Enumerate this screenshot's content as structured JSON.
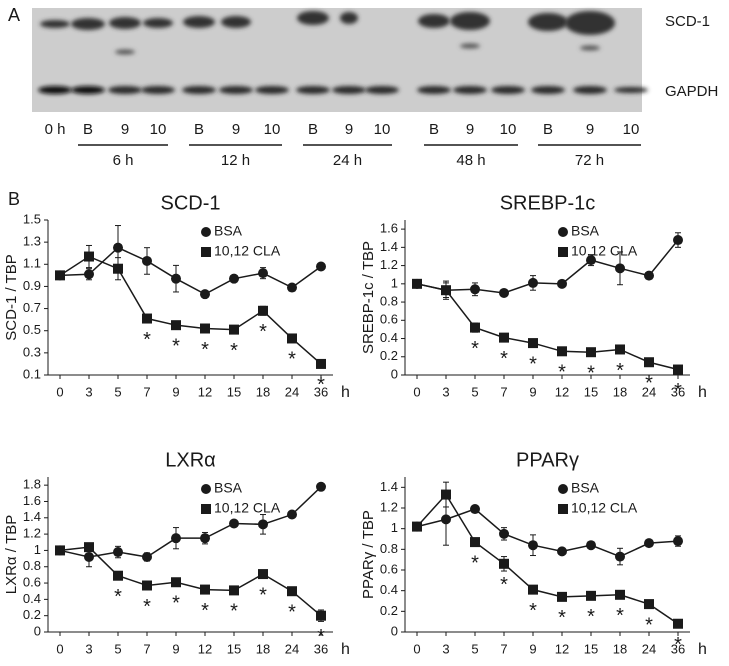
{
  "panels": [
    "A",
    "B"
  ],
  "blot": {
    "band_labels": [
      "SCD-1",
      "GAPDH"
    ],
    "lane_labels": [
      "0 h",
      "B",
      "9",
      "10",
      "B",
      "9",
      "10",
      "B",
      "9",
      "10",
      "B",
      "9",
      "10",
      "B",
      "9",
      "10"
    ],
    "group_labels": [
      "6 h",
      "12 h",
      "24 h",
      "48 h",
      "72 h"
    ]
  },
  "chart_data": [
    {
      "type": "line",
      "title": "SCD-1",
      "y_label": "SCD-1 / TBP",
      "x_label": "h",
      "categories": [
        "0",
        "3",
        "5",
        "7",
        "9",
        "12",
        "15",
        "18",
        "24",
        "36"
      ],
      "ylim": [
        0.1,
        1.5
      ],
      "yticks": [
        0.1,
        0.3,
        0.5,
        0.7,
        0.9,
        1.1,
        1.3,
        1.5
      ],
      "series": [
        {
          "name": "BSA",
          "color": "#1a1a1a",
          "marker": "circle",
          "values": [
            1.0,
            1.01,
            1.25,
            1.13,
            0.97,
            0.83,
            0.97,
            1.02,
            0.89,
            1.08
          ],
          "errors": [
            0,
            0.05,
            0.2,
            0.12,
            0.12,
            0.02,
            0.03,
            0.05,
            0.03,
            0.03
          ]
        },
        {
          "name": "10,12 CLA",
          "color": "#1a1a1a",
          "marker": "square",
          "values": [
            1.0,
            1.17,
            1.06,
            0.61,
            0.55,
            0.52,
            0.51,
            0.68,
            0.43,
            0.2
          ],
          "errors": [
            0,
            0.1,
            0.1,
            0.03,
            0.03,
            0.03,
            0.03,
            0.04,
            0.03,
            0.03
          ],
          "significance": [
            null,
            null,
            null,
            "*",
            "*",
            "*",
            "*",
            "*",
            "*",
            "*"
          ]
        }
      ]
    },
    {
      "type": "line",
      "title": "SREBP-1c",
      "y_label": "SREBP-1c / TBP",
      "x_label": "h",
      "categories": [
        "0",
        "3",
        "5",
        "7",
        "9",
        "12",
        "15",
        "18",
        "24",
        "36"
      ],
      "ylim": [
        0,
        1.7
      ],
      "yticks": [
        0,
        0.2,
        0.4,
        0.6,
        0.8,
        1,
        1.2,
        1.4,
        1.6
      ],
      "series": [
        {
          "name": "BSA",
          "color": "#1a1a1a",
          "marker": "circle",
          "values": [
            1.0,
            0.93,
            0.94,
            0.9,
            1.01,
            1.0,
            1.26,
            1.17,
            1.09,
            1.48
          ],
          "errors": [
            0,
            0.1,
            0.07,
            0.03,
            0.08,
            0.02,
            0.06,
            0.18,
            0.03,
            0.08
          ]
        },
        {
          "name": "10,12 CLA",
          "color": "#1a1a1a",
          "marker": "square",
          "values": [
            1.0,
            0.93,
            0.52,
            0.41,
            0.35,
            0.26,
            0.25,
            0.28,
            0.14,
            0.06
          ],
          "errors": [
            0,
            0.08,
            0.05,
            0.03,
            0.03,
            0.03,
            0.02,
            0.03,
            0.02,
            0.03
          ],
          "significance": [
            null,
            null,
            "*",
            "*",
            "*",
            "*",
            "*",
            "*",
            "*",
            "*"
          ]
        }
      ]
    },
    {
      "type": "line",
      "title": "LXRα",
      "y_label": "LXRα / TBP",
      "x_label": "h",
      "categories": [
        "0",
        "3",
        "5",
        "7",
        "9",
        "12",
        "15",
        "18",
        "24",
        "36"
      ],
      "ylim": [
        0,
        1.9
      ],
      "yticks": [
        0,
        0.2,
        0.4,
        0.6,
        0.8,
        1,
        1.2,
        1.4,
        1.6,
        1.8
      ],
      "series": [
        {
          "name": "BSA",
          "color": "#1a1a1a",
          "marker": "circle",
          "values": [
            1.0,
            0.92,
            0.98,
            0.92,
            1.15,
            1.15,
            1.33,
            1.32,
            1.44,
            1.78
          ],
          "errors": [
            0,
            0.12,
            0.07,
            0.05,
            0.13,
            0.07,
            0.03,
            0.12,
            0.03,
            0.02
          ]
        },
        {
          "name": "10,12 CLA",
          "color": "#1a1a1a",
          "marker": "square",
          "values": [
            1.0,
            1.04,
            0.69,
            0.57,
            0.61,
            0.52,
            0.51,
            0.71,
            0.5,
            0.2
          ],
          "errors": [
            0,
            0.05,
            0.05,
            0.03,
            0.03,
            0.03,
            0.03,
            0.03,
            0.03,
            0.07
          ],
          "significance": [
            null,
            null,
            "*",
            "*",
            "*",
            "*",
            "*",
            "*",
            "*",
            "*"
          ]
        }
      ]
    },
    {
      "type": "line",
      "title": "PPARγ",
      "y_label": "PPARγ / TBP",
      "x_label": "h",
      "categories": [
        "0",
        "3",
        "5",
        "7",
        "9",
        "12",
        "15",
        "18",
        "24",
        "36"
      ],
      "ylim": [
        0,
        1.5
      ],
      "yticks": [
        0,
        0.2,
        0.4,
        0.6,
        0.8,
        1,
        1.2,
        1.4
      ],
      "series": [
        {
          "name": "BSA",
          "color": "#1a1a1a",
          "marker": "circle",
          "values": [
            1.02,
            1.09,
            1.19,
            0.95,
            0.84,
            0.78,
            0.84,
            0.73,
            0.86,
            0.88
          ],
          "errors": [
            0,
            0.25,
            0.02,
            0.06,
            0.1,
            0.02,
            0.02,
            0.08,
            0.02,
            0.05
          ]
        },
        {
          "name": "10,12 CLA",
          "color": "#1a1a1a",
          "marker": "square",
          "values": [
            1.02,
            1.33,
            0.87,
            0.66,
            0.41,
            0.34,
            0.35,
            0.36,
            0.27,
            0.08
          ],
          "errors": [
            0,
            0.12,
            0.03,
            0.07,
            0.03,
            0.02,
            0.02,
            0.02,
            0.02,
            0.02
          ],
          "significance": [
            null,
            null,
            "*",
            "*",
            "*",
            "*",
            "*",
            "*",
            "*",
            "*"
          ]
        }
      ]
    }
  ]
}
